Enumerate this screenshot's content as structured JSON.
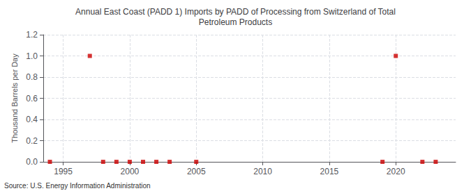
{
  "chart_data": {
    "type": "scatter",
    "title": "Annual East Coast (PADD 1) Imports by PADD of Processing from Switzerland of Total\nPetroleum Products",
    "ylabel": "Thousand Barrels per Day",
    "annotations": [
      "Source: U.S. Energy Information Administration"
    ],
    "x": [
      1994,
      1997,
      1998,
      1999,
      2000,
      2001,
      2002,
      2003,
      2005,
      2019,
      2020,
      2022,
      2023
    ],
    "values": [
      0.0,
      1.0,
      0.0,
      0.0,
      0.0,
      0.0,
      0.0,
      0.0,
      0.0,
      0.0,
      1.0,
      0.0,
      0.0
    ],
    "color": "#cc0000",
    "marker": "square",
    "xlim": [
      1993.5,
      2024.5
    ],
    "xticks": [
      1995,
      2000,
      2005,
      2010,
      2015,
      2020
    ],
    "ylim": [
      0.0,
      1.2
    ],
    "yticks": [
      {
        "value": 0.0,
        "label": "0.0"
      },
      0.2,
      0.4,
      0.6,
      0.8,
      {
        "value": 1.0,
        "label": "1.0"
      },
      1.2
    ],
    "grid": true
  }
}
